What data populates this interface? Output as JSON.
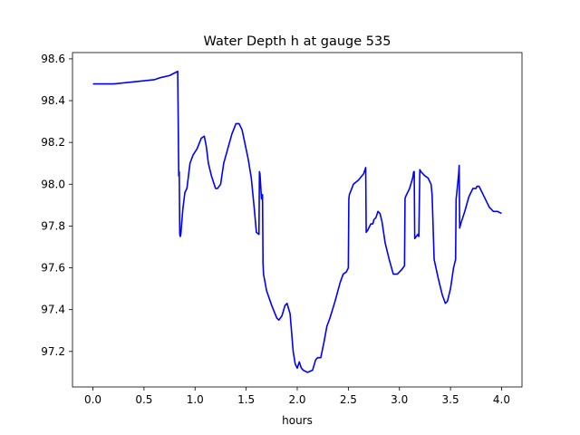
{
  "chart_data": {
    "type": "line",
    "title": "Water Depth h at gauge 535",
    "xlabel": "hours",
    "ylabel": "",
    "xlim": [
      -0.2,
      4.2
    ],
    "ylim": [
      97.03,
      98.63
    ],
    "x_ticks": [
      0.0,
      0.5,
      1.0,
      1.5,
      2.0,
      2.5,
      3.0,
      3.5,
      4.0
    ],
    "x_tick_labels": [
      "0.0",
      "0.5",
      "1.0",
      "1.5",
      "2.0",
      "2.5",
      "3.0",
      "3.5",
      "4.0"
    ],
    "y_ticks": [
      97.2,
      97.4,
      97.6,
      97.8,
      98.0,
      98.2,
      98.4,
      98.6
    ],
    "y_tick_labels": [
      "97.2",
      "97.4",
      "97.6",
      "97.8",
      "98.0",
      "98.2",
      "98.4",
      "98.6"
    ],
    "grid": false,
    "series": [
      {
        "color": "#0000ff",
        "x": [
          0.0,
          0.2,
          0.4,
          0.6,
          0.66,
          0.75,
          0.83,
          0.84,
          0.845,
          0.85,
          0.855,
          0.86,
          0.88,
          0.9,
          0.92,
          0.95,
          0.98,
          1.02,
          1.06,
          1.09,
          1.11,
          1.13,
          1.16,
          1.2,
          1.22,
          1.25,
          1.28,
          1.32,
          1.36,
          1.4,
          1.43,
          1.46,
          1.49,
          1.52,
          1.55,
          1.58,
          1.6,
          1.625,
          1.63,
          1.635,
          1.65,
          1.66,
          1.665,
          1.67,
          1.7,
          1.75,
          1.8,
          1.82,
          1.85,
          1.88,
          1.9,
          1.93,
          1.96,
          1.98,
          2.0,
          2.02,
          2.04,
          2.06,
          2.1,
          2.15,
          2.18,
          2.2,
          2.23,
          2.26,
          2.29,
          2.32,
          2.37,
          2.42,
          2.45,
          2.48,
          2.5,
          2.505,
          2.51,
          2.55,
          2.6,
          2.65,
          2.67,
          2.675,
          2.69,
          2.72,
          2.74,
          2.75,
          2.77,
          2.79,
          2.81,
          2.83,
          2.86,
          2.9,
          2.94,
          2.98,
          3.02,
          3.05,
          3.055,
          3.06,
          3.1,
          3.13,
          3.14,
          3.145,
          3.15,
          3.18,
          3.19,
          3.2,
          3.21,
          3.25,
          3.28,
          3.31,
          3.32,
          3.34,
          3.38,
          3.42,
          3.45,
          3.47,
          3.5,
          3.53,
          3.55,
          3.555,
          3.56,
          3.57,
          3.58,
          3.585,
          3.59,
          3.6,
          3.64,
          3.68,
          3.72,
          3.75,
          3.76,
          3.78,
          3.82,
          3.86,
          3.88,
          3.92,
          3.96,
          4.0
        ],
        "y": [
          98.48,
          98.48,
          98.49,
          98.5,
          98.51,
          98.52,
          98.54,
          98.04,
          98.06,
          97.76,
          97.75,
          97.76,
          97.88,
          97.96,
          97.98,
          98.1,
          98.14,
          98.17,
          98.22,
          98.23,
          98.18,
          98.1,
          98.04,
          97.98,
          97.98,
          98.0,
          98.1,
          98.17,
          98.24,
          98.29,
          98.29,
          98.26,
          98.19,
          98.12,
          98.03,
          97.88,
          97.77,
          97.76,
          98.06,
          98.05,
          97.93,
          97.95,
          97.62,
          97.57,
          97.49,
          97.42,
          97.36,
          97.35,
          97.37,
          97.42,
          97.43,
          97.38,
          97.2,
          97.14,
          97.12,
          97.15,
          97.12,
          97.11,
          97.1,
          97.11,
          97.16,
          97.17,
          97.17,
          97.24,
          97.32,
          97.36,
          97.44,
          97.53,
          97.57,
          97.58,
          97.6,
          97.93,
          97.95,
          98.0,
          98.02,
          98.05,
          98.08,
          97.77,
          97.78,
          97.81,
          97.81,
          97.83,
          97.84,
          97.87,
          97.86,
          97.82,
          97.72,
          97.64,
          97.57,
          97.57,
          97.59,
          97.61,
          97.93,
          97.94,
          97.98,
          98.03,
          98.06,
          98.06,
          97.74,
          97.76,
          97.75,
          98.07,
          98.06,
          98.04,
          98.03,
          98.0,
          97.95,
          97.64,
          97.55,
          97.47,
          97.43,
          97.44,
          97.5,
          97.6,
          97.64,
          97.93,
          97.95,
          98.0,
          98.05,
          98.09,
          97.79,
          97.81,
          97.87,
          97.94,
          97.98,
          97.98,
          97.99,
          97.99,
          97.95,
          97.91,
          97.89,
          97.87,
          97.87,
          97.86
        ]
      }
    ]
  }
}
